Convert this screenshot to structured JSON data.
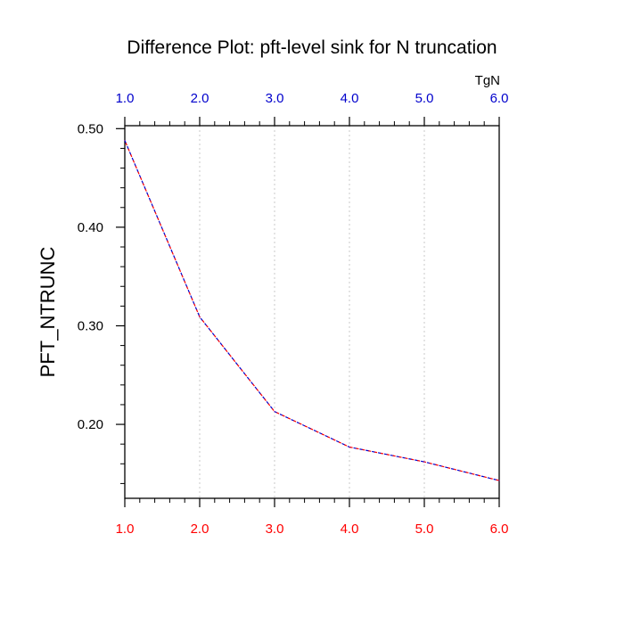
{
  "chart_data": {
    "type": "line",
    "title": "Difference Plot: pft-level sink for N truncation",
    "xlabel": "",
    "ylabel": "PFT_NTRUNC",
    "top_axis_unit": "TgN",
    "x": [
      1.0,
      2.0,
      3.0,
      4.0,
      5.0,
      6.0
    ],
    "series": [
      {
        "values": [
          0.488,
          0.309,
          0.213,
          0.177,
          0.162,
          0.143
        ]
      }
    ],
    "xlim": [
      1.0,
      6.0
    ],
    "ylim": [
      0.125,
      0.503
    ],
    "x_ticks": [
      "1.0",
      "2.0",
      "3.0",
      "4.0",
      "5.0",
      "6.0"
    ],
    "x_tick_values": [
      1,
      2,
      3,
      4,
      5,
      6
    ],
    "y_ticks": [
      "0.50",
      "0.40",
      "0.30",
      "0.20"
    ],
    "y_tick_values": [
      0.5,
      0.4,
      0.3,
      0.2
    ],
    "y_minor_step": 0.02,
    "x_minor_step": 0.2,
    "grid": "x-dotted",
    "colors": {
      "line": "#7a00a8",
      "top_axis": "#0000cc",
      "bottom_axis": "#ff0000",
      "grid": "#c8c8c8",
      "axes": "#000000"
    }
  }
}
